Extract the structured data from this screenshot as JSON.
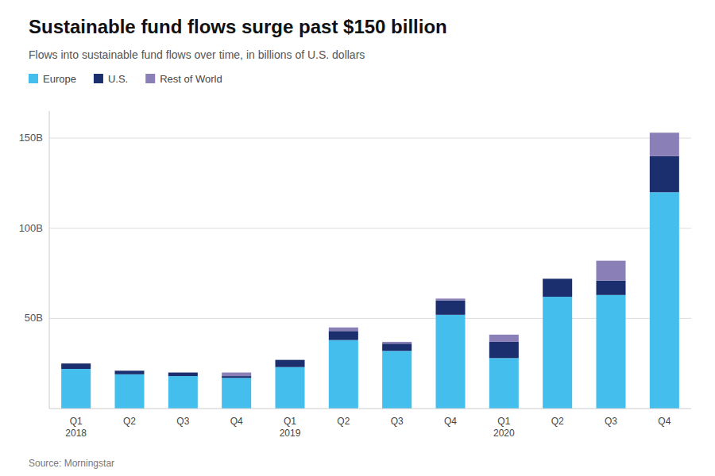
{
  "chart_data": {
    "type": "bar",
    "stacked": true,
    "title": "Sustainable fund flows surge past $150 billion",
    "subtitle": "Flows into sustainable fund flows over time, in billions of U.S. dollars",
    "source": "Source: Morningstar",
    "categories": [
      "Q1\n2018",
      "Q2",
      "Q3",
      "Q4",
      "Q1\n2019",
      "Q2",
      "Q3",
      "Q4",
      "Q1\n2020",
      "Q2",
      "Q3",
      "Q4"
    ],
    "series": [
      {
        "name": "Europe",
        "color": "#44BFED",
        "values": [
          22,
          19,
          18,
          17,
          23,
          38,
          32,
          52,
          28,
          62,
          63,
          120
        ]
      },
      {
        "name": "U.S.",
        "color": "#1B2F6E",
        "values": [
          3,
          2,
          2,
          1,
          4,
          5,
          4,
          8,
          9,
          10,
          8,
          20
        ]
      },
      {
        "name": "Rest of World",
        "color": "#8B7FB8",
        "values": [
          0,
          0,
          0,
          2,
          0,
          2,
          1,
          1,
          4,
          0,
          11,
          13
        ]
      }
    ],
    "ylim": [
      0,
      165
    ],
    "yticks": [
      {
        "value": 50,
        "label": "50B"
      },
      {
        "value": 100,
        "label": "100B"
      },
      {
        "value": 150,
        "label": "150B"
      }
    ],
    "grid": true,
    "legend": "top"
  }
}
